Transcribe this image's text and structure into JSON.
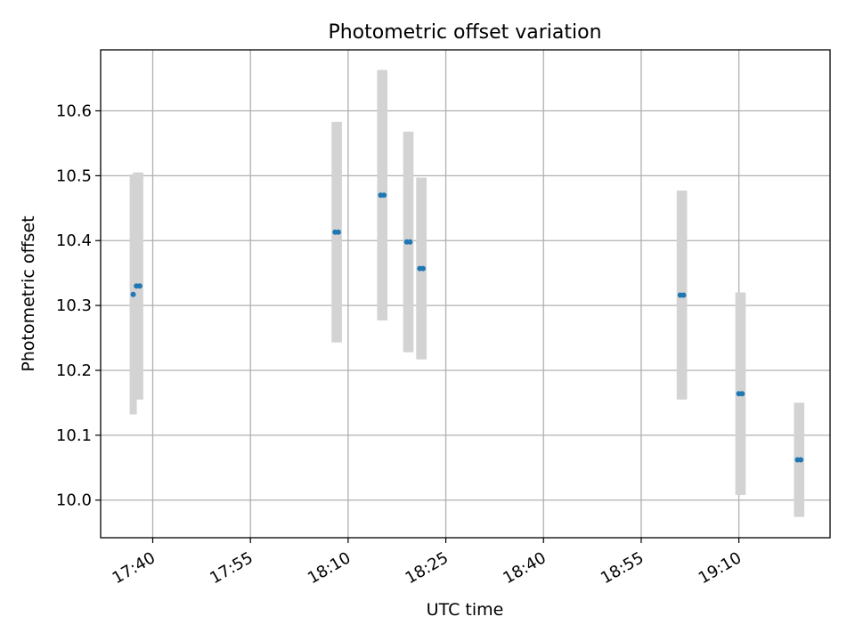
{
  "chart_data": {
    "type": "scatter",
    "title": "Photometric offset variation",
    "xlabel": "UTC time",
    "ylabel": "Photometric offset",
    "x_ticks": [
      "17:40",
      "17:55",
      "18:10",
      "18:25",
      "18:40",
      "18:55",
      "19:10"
    ],
    "xlim": [
      "17:32:00",
      "19:24:00"
    ],
    "y_ticks": [
      "10.0",
      "10.1",
      "10.2",
      "10.3",
      "10.4",
      "10.5",
      "10.6"
    ],
    "ylim": [
      9.942,
      10.694
    ],
    "grid": true,
    "colors": {
      "points": "#1f77b4",
      "error_bars": "#d3d3d3",
      "grid": "#b0b0b0"
    },
    "series": [
      {
        "points": [
          {
            "x": "17:37:00",
            "y": 10.317,
            "err": 0.185
          },
          {
            "x": "17:37:30",
            "y": 10.33,
            "err": 0.175
          },
          {
            "x": "17:38:00",
            "y": 10.33,
            "err": 0.175
          },
          {
            "x": "18:08:00",
            "y": 10.413,
            "err": 0.17
          },
          {
            "x": "18:08:30",
            "y": 10.413,
            "err": 0.17
          },
          {
            "x": "18:15:00",
            "y": 10.47,
            "err": 0.193
          },
          {
            "x": "18:15:30",
            "y": 10.47,
            "err": 0.193
          },
          {
            "x": "18:19:00",
            "y": 10.398,
            "err": 0.17
          },
          {
            "x": "18:19:30",
            "y": 10.398,
            "err": 0.17
          },
          {
            "x": "18:21:00",
            "y": 10.357,
            "err": 0.14
          },
          {
            "x": "18:21:30",
            "y": 10.357,
            "err": 0.14
          },
          {
            "x": "19:01:00",
            "y": 10.316,
            "err": 0.161
          },
          {
            "x": "19:01:30",
            "y": 10.316,
            "err": 0.161
          },
          {
            "x": "19:10:00",
            "y": 10.164,
            "err": 0.156
          },
          {
            "x": "19:10:30",
            "y": 10.164,
            "err": 0.156
          },
          {
            "x": "19:19:00",
            "y": 10.062,
            "err": 0.088
          },
          {
            "x": "19:19:30",
            "y": 10.062,
            "err": 0.088
          }
        ]
      }
    ]
  }
}
